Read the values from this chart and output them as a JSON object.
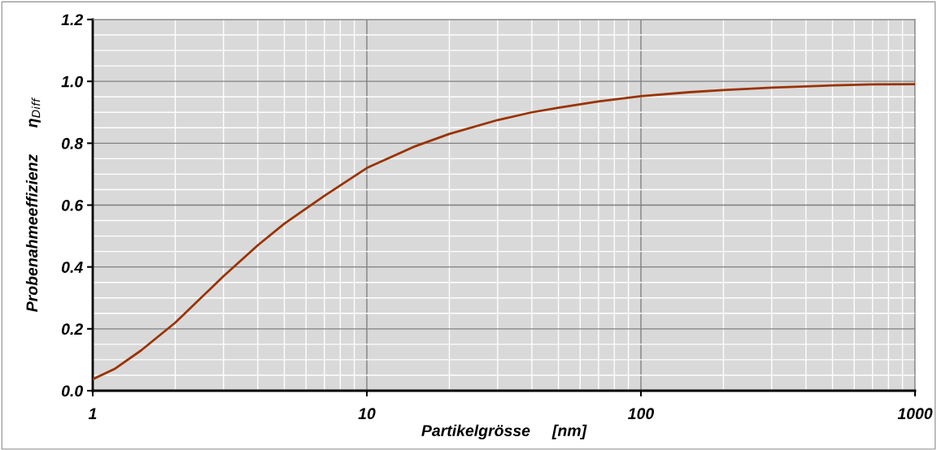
{
  "chart_data": {
    "type": "line",
    "xlabel": "Partikelgrösse     [nm]",
    "ylabel": "Probenahmeeffizienz      η$_{Diff}$",
    "x": [
      1,
      1.2,
      1.5,
      2,
      3,
      4,
      5,
      7,
      10,
      15,
      20,
      30,
      40,
      50,
      70,
      100,
      150,
      200,
      300,
      500,
      700,
      1000
    ],
    "series": [
      {
        "color": "#993300",
        "values": [
          0.037,
          0.07,
          0.13,
          0.22,
          0.37,
          0.47,
          0.54,
          0.63,
          0.72,
          0.79,
          0.83,
          0.875,
          0.9,
          0.915,
          0.935,
          0.952,
          0.965,
          0.972,
          0.98,
          0.987,
          0.99,
          0.991
        ]
      }
    ],
    "log": "x",
    "xlim": [
      1,
      1000
    ],
    "xticks": [
      1,
      10,
      100,
      1000
    ],
    "ylim": [
      0,
      1.2
    ],
    "yticks": [
      {
        "value": 0,
        "label": "0.0"
      },
      {
        "value": 0.2,
        "label": "0.2"
      },
      {
        "value": 0.4,
        "label": "0.4"
      },
      {
        "value": 0.6,
        "label": "0.6"
      },
      {
        "value": 0.8,
        "label": "0.8"
      },
      {
        "value": 1.0,
        "label": "1.0"
      },
      {
        "value": 1.2,
        "label": "1.2"
      }
    ],
    "grid": true,
    "legend": false,
    "marker": "none",
    "line_style": "solid"
  }
}
